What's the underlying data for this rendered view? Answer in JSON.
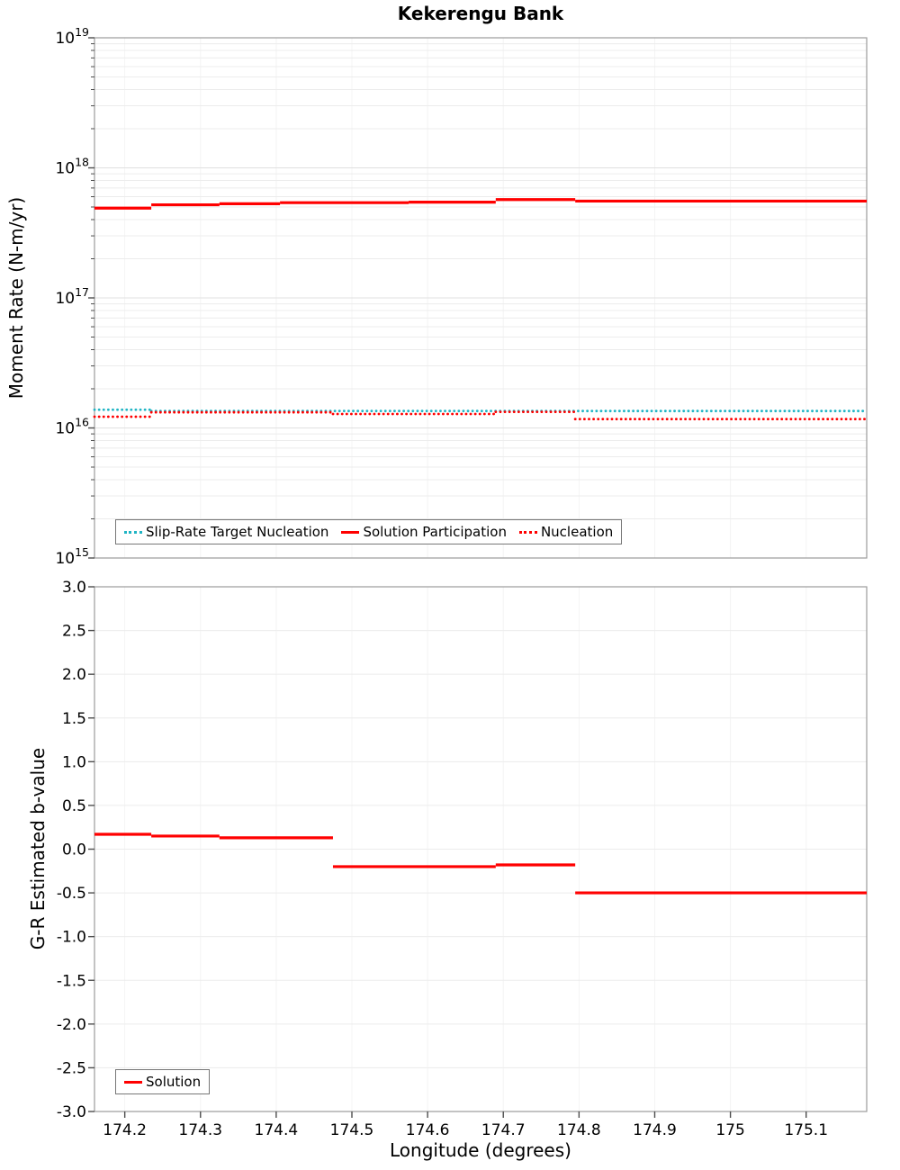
{
  "title": "Kekerengu Bank",
  "x_axis": {
    "label": "Longitude (degrees)",
    "range": [
      174.16,
      175.18
    ],
    "ticks": [
      {
        "v": 174.2,
        "label": "174.2"
      },
      {
        "v": 174.3,
        "label": "174.3"
      },
      {
        "v": 174.4,
        "label": "174.4"
      },
      {
        "v": 174.5,
        "label": "174.5"
      },
      {
        "v": 174.6,
        "label": "174.6"
      },
      {
        "v": 174.7,
        "label": "174.7"
      },
      {
        "v": 174.8,
        "label": "174.8"
      },
      {
        "v": 174.9,
        "label": "174.9"
      },
      {
        "v": 175.0,
        "label": "175"
      },
      {
        "v": 175.1,
        "label": "175.1"
      }
    ]
  },
  "style_colors": {
    "grid_vertical": "#f4f4f4",
    "grid_minor": "#ececec",
    "grid_major": "#e0e0e0",
    "plot_border": "#9b9b9b",
    "tick": "#4d4d4d",
    "red": "#ff0000",
    "cyan": "#1fb4c4"
  },
  "chart_data": [
    {
      "type": "line",
      "title": "Kekerengu Bank",
      "ylabel": "Moment Rate (N-m/yr)",
      "yscale": "log",
      "ylim": [
        1000000000000000.0,
        1e+19
      ],
      "ylim_exp": [
        15,
        19
      ],
      "ytick_exponents": [
        15,
        16,
        17,
        18,
        19
      ],
      "legend_position": "bottom-left",
      "grid": true,
      "series": [
        {
          "name": "Slip-Rate Target Nucleation",
          "color": "#1fb4c4",
          "line_style": "dotted",
          "segments": [
            [
              174.16,
              174.235,
              1.38e+16
            ],
            [
              174.235,
              175.18,
              1.35e+16
            ]
          ]
        },
        {
          "name": "Solution Participation",
          "color": "#ff0000",
          "line_style": "solid",
          "segments": [
            [
              174.16,
              174.235,
              4.9e+17
            ],
            [
              174.235,
              174.325,
              5.2e+17
            ],
            [
              174.325,
              174.405,
              5.3e+17
            ],
            [
              174.405,
              174.575,
              5.4e+17
            ],
            [
              174.575,
              174.69,
              5.45e+17
            ],
            [
              174.69,
              174.795,
              5.7e+17
            ],
            [
              174.795,
              175.18,
              5.55e+17
            ]
          ]
        },
        {
          "name": "Nucleation",
          "color": "#ff0000",
          "line_style": "dotted",
          "segments": [
            [
              174.16,
              174.235,
              1.22e+16
            ],
            [
              174.235,
              174.475,
              1.32e+16
            ],
            [
              174.475,
              174.69,
              1.28e+16
            ],
            [
              174.69,
              174.795,
              1.33e+16
            ],
            [
              174.795,
              175.18,
              1.17e+16
            ]
          ]
        }
      ]
    },
    {
      "type": "line",
      "ylabel": "G-R Estimated b-value",
      "yscale": "linear",
      "ylim": [
        -3.0,
        3.0
      ],
      "yticks": [
        {
          "v": 3.0,
          "label": "3.0"
        },
        {
          "v": 2.5,
          "label": "2.5"
        },
        {
          "v": 2.0,
          "label": "2.0"
        },
        {
          "v": 1.5,
          "label": "1.5"
        },
        {
          "v": 1.0,
          "label": "1.0"
        },
        {
          "v": 0.5,
          "label": "0.5"
        },
        {
          "v": 0.0,
          "label": "0.0"
        },
        {
          "v": -0.5,
          "label": "-0.5"
        },
        {
          "v": -1.0,
          "label": "-1.0"
        },
        {
          "v": -1.5,
          "label": "-1.5"
        },
        {
          "v": -2.0,
          "label": "-2.0"
        },
        {
          "v": -2.5,
          "label": "-2.5"
        },
        {
          "v": -3.0,
          "label": "-3.0"
        }
      ],
      "legend_position": "bottom-left",
      "grid": true,
      "series": [
        {
          "name": "Solution",
          "color": "#ff0000",
          "line_style": "solid",
          "segments": [
            [
              174.16,
              174.235,
              0.17
            ],
            [
              174.235,
              174.325,
              0.15
            ],
            [
              174.325,
              174.475,
              0.13
            ],
            [
              174.475,
              174.69,
              -0.2
            ],
            [
              174.69,
              174.795,
              -0.18
            ],
            [
              174.795,
              175.18,
              -0.5
            ]
          ]
        }
      ]
    }
  ]
}
